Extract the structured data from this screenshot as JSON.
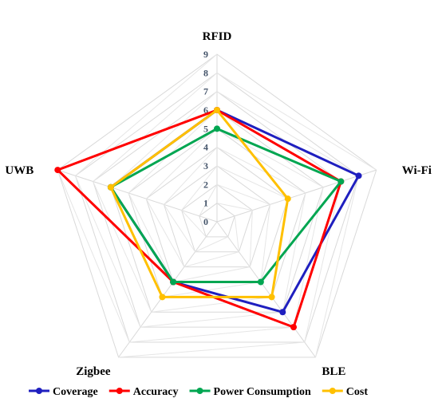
{
  "chart_data": {
    "type": "radar",
    "title": "",
    "axes": [
      "RFID",
      "Wi-Fi",
      "BLE",
      "Zigbee",
      "UWB"
    ],
    "ticks": [
      "0",
      "1",
      "2",
      "3",
      "4",
      "5",
      "6",
      "7",
      "8",
      "9"
    ],
    "rlim": [
      0,
      9
    ],
    "grid": true,
    "legend_position": "bottom",
    "series": [
      {
        "name": "Coverage",
        "color": "#1f1fbf",
        "values": [
          6,
          8,
          6,
          4,
          6
        ]
      },
      {
        "name": "Accuracy",
        "color": "#ff0000",
        "values": [
          6,
          7,
          7,
          4,
          9
        ]
      },
      {
        "name": "Power Consumption",
        "color": "#00a651",
        "values": [
          5,
          7,
          4,
          4,
          6
        ]
      },
      {
        "name": "Cost",
        "color": "#ffc000",
        "values": [
          6,
          4,
          5,
          5,
          6
        ]
      }
    ]
  }
}
